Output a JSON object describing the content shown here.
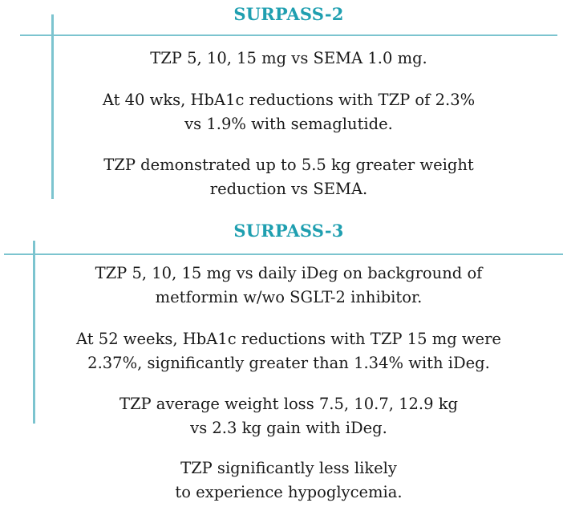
{
  "accent_color": "#1f9fb0",
  "line_color": "#7cc4cf",
  "sections": [
    {
      "title": "SURPASS-2",
      "paragraphs": [
        [
          "TZP 5, 10, 15 mg vs SEMA 1.0 mg."
        ],
        [
          "At 40 wks, HbA1c reductions with TZP of 2.3%",
          "vs 1.9% with semaglutide."
        ],
        [
          "TZP demonstrated up to 5.5 kg greater weight",
          "reduction vs SEMA."
        ]
      ]
    },
    {
      "title": "SURPASS-3",
      "paragraphs": [
        [
          "TZP 5, 10, 15 mg vs daily iDeg on background of",
          "metformin w/wo SGLT-2 inhibitor."
        ],
        [
          "At 52 weeks, HbA1c reductions with TZP 15 mg were",
          "2.37%, significantly greater than 1.34% with iDeg."
        ],
        [
          "TZP average weight loss 7.5, 10.7, 12.9 kg",
          "vs 2.3 kg gain with iDeg."
        ],
        [
          "TZP significantly less likely",
          "to experience hypoglycemia."
        ]
      ]
    }
  ]
}
